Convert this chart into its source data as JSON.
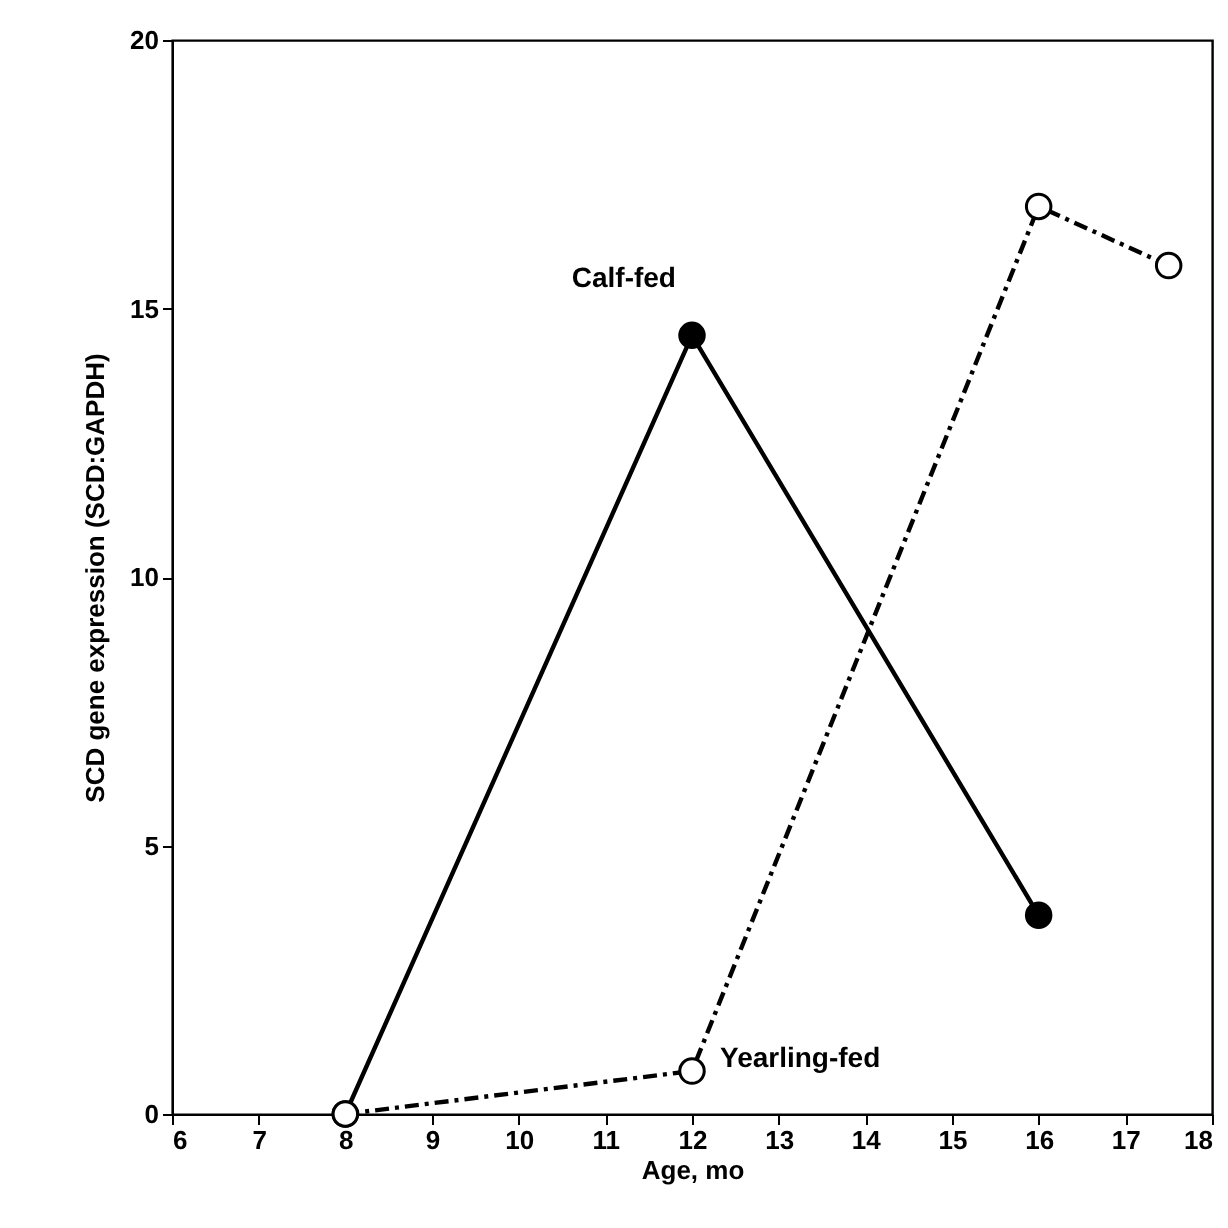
{
  "chart_data": {
    "type": "line",
    "xlabel": "Age, mo",
    "ylabel": "SCD gene expression (SCD:GAPDH)",
    "x": [
      8,
      12,
      16
    ],
    "xlim": [
      6,
      18
    ],
    "xticks": [
      6,
      7,
      8,
      9,
      10,
      11,
      12,
      13,
      14,
      15,
      16,
      17,
      18
    ],
    "ylim": [
      0,
      20
    ],
    "yticks": [
      0,
      5,
      10,
      15,
      20
    ],
    "grid": false,
    "marker": "circle",
    "series": [
      {
        "name": "Calf-fed",
        "color": "#000000",
        "line_style": "solid",
        "values": [
          0,
          14.5,
          3.7
        ]
      },
      {
        "name": "Yearling-fed",
        "color": "#000000",
        "line_style": "dashed",
        "x": [
          8,
          12,
          16,
          17.5
        ],
        "values": [
          0,
          0.8,
          16.9,
          15.8
        ]
      }
    ]
  }
}
